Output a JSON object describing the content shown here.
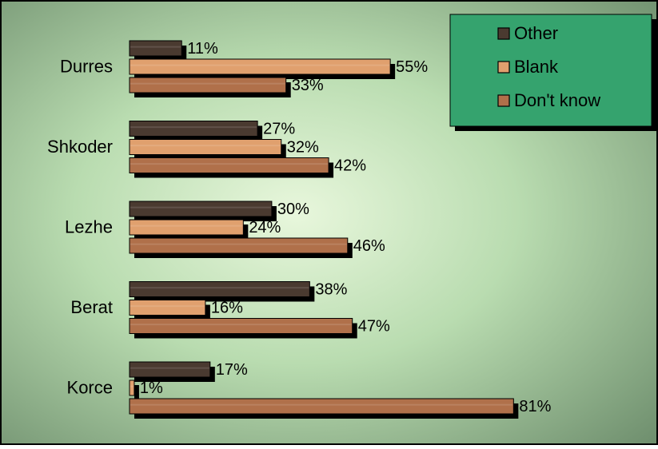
{
  "chart_data": {
    "type": "bar",
    "orientation": "horizontal",
    "categories": [
      "Durres",
      "Shkoder",
      "Lezhe",
      "Berat",
      "Korce"
    ],
    "series": [
      {
        "name": "Other",
        "values": [
          11,
          27,
          30,
          38,
          17
        ],
        "color": "#4a3a30"
      },
      {
        "name": "Blank",
        "values": [
          55,
          32,
          24,
          16,
          1
        ],
        "color": "#e0a06e"
      },
      {
        "name": "Don't know",
        "values": [
          33,
          42,
          46,
          47,
          81
        ],
        "color": "#b0704a"
      }
    ],
    "value_suffix": "%",
    "xlim": [
      0,
      100
    ],
    "grid": false,
    "legend_position": "top-right",
    "background": {
      "center": "#e8f7dc",
      "mid": "#b9dcb0",
      "edge": "#6f8f6e"
    },
    "legend_background": "#35a36e",
    "title": "",
    "xlabel": "",
    "ylabel": ""
  }
}
